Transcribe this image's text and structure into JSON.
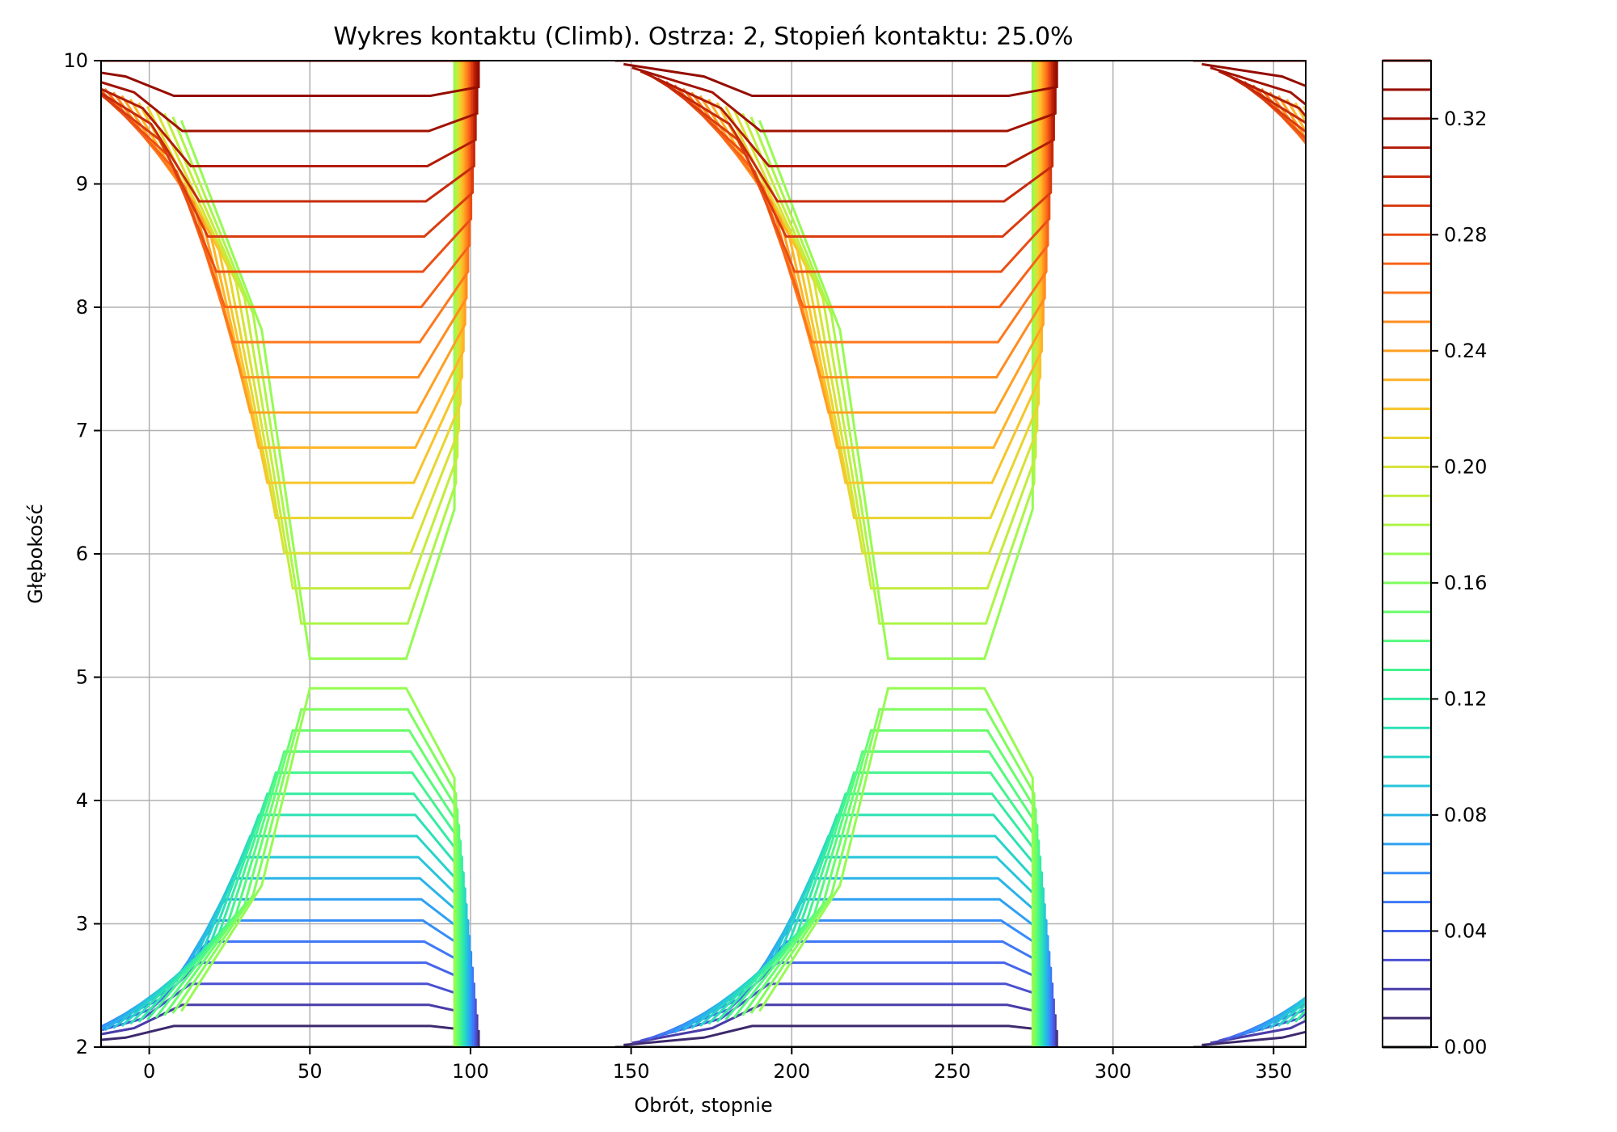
{
  "chart_data": {
    "type": "contour",
    "title": "Wykres kontaktu (Climb). Ostrza: 2, Stopień kontaktu: 25.0%",
    "xlabel": "Obrót, stopnie",
    "ylabel": "Głębokość",
    "xlim": [
      -15,
      360
    ],
    "ylim": [
      2,
      10
    ],
    "x_ticks": [
      "0",
      "50",
      "100",
      "150",
      "200",
      "250",
      "300",
      "350"
    ],
    "x_tick_values": [
      0,
      50,
      100,
      150,
      200,
      250,
      300,
      350
    ],
    "y_ticks": [
      "2",
      "3",
      "4",
      "5",
      "6",
      "7",
      "8",
      "9",
      "10"
    ],
    "y_tick_values": [
      2,
      3,
      4,
      5,
      6,
      7,
      8,
      9,
      10
    ],
    "grid": true,
    "colormap": "turbo",
    "levels_min": 0.0,
    "levels_max": 0.34,
    "levels_step": 0.01,
    "colorbar_ticks": [
      "0.00",
      "0.04",
      "0.08",
      "0.12",
      "0.16",
      "0.20",
      "0.24",
      "0.28",
      "0.32"
    ],
    "colorbar_tick_values": [
      0.0,
      0.04,
      0.08,
      0.12,
      0.16,
      0.2,
      0.24,
      0.28,
      0.32
    ],
    "field": {
      "period_degrees": 180,
      "lobes": [
        {
          "x_start": 35,
          "x_end": 95,
          "y_start": 2,
          "y_end": 5,
          "value_at_base": 0.0,
          "value_at_edge": 0.17
        },
        {
          "x_start": 35,
          "x_end": 95,
          "y_start": 5,
          "y_end": 10,
          "value_at_base": 0.34,
          "value_at_edge": 0.17
        }
      ]
    }
  },
  "colors": {
    "axes": "#000000",
    "grid": "#b0b0b0",
    "background": "#ffffff"
  }
}
